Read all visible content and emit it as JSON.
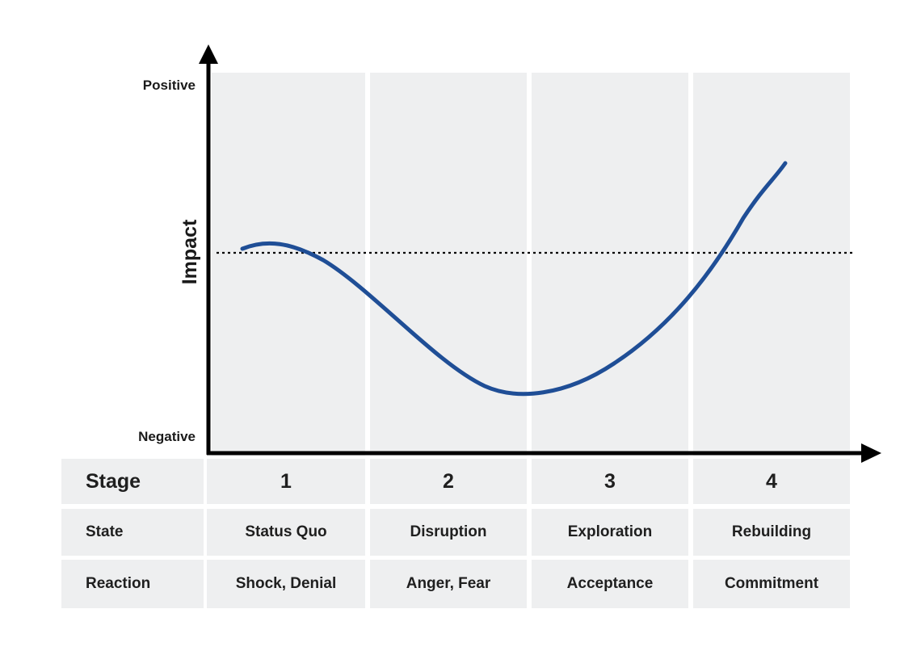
{
  "colors": {
    "curve": "#1f4e96",
    "panel": "#eeeff0",
    "axis": "#000000",
    "baseline": "#000000"
  },
  "axis": {
    "y_label": "Impact",
    "y_top_label": "Positive",
    "y_bottom_label": "Negative"
  },
  "table": {
    "stage_label": "Stage",
    "state_label": "State",
    "reaction_label": "Reaction",
    "stages": [
      {
        "number": "1",
        "state": "Status Quo",
        "reaction": "Shock, Denial"
      },
      {
        "number": "2",
        "state": "Disruption",
        "reaction": "Anger, Fear"
      },
      {
        "number": "3",
        "state": "Exploration",
        "reaction": "Acceptance"
      },
      {
        "number": "4",
        "state": "Rebuilding",
        "reaction": "Commitment"
      }
    ]
  }
}
